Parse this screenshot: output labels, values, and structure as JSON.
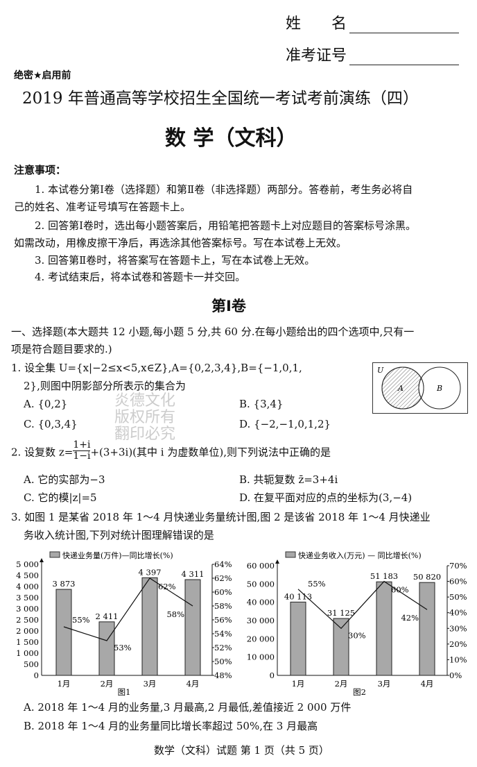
{
  "header": {
    "name_label": "姓　　名",
    "id_label": "准考证号",
    "secret": "绝密★启用前",
    "title": "2019 年普通高等学校招生全国统一考试考前演练（四）",
    "subject": "数 学（文科）"
  },
  "notice": {
    "heading": "注意事项：",
    "items": [
      "1. 本试卷分第Ⅰ卷（选择题）和第Ⅱ卷（非选择题）两部分。答卷前，考生务必将自",
      "己的姓名、准考证号填写在答题卡上。",
      "2. 回答第Ⅰ卷时，选出每小题答案后，用铅笔把答题卡上对应题目的答案标号涂黑。",
      "如需改动，用橡皮擦干净后，再选涂其他答案标号。写在本试卷上无效。",
      "3. 回答第Ⅱ卷时，将答案写在答题卡上，写在本试卷上无效。",
      "4. 考试结束后，将本试卷和答题卡一并交回。"
    ]
  },
  "section": "第Ⅰ卷",
  "part1": [
    "一、选择题(本大题共 12 小题,每小题 5 分,共 60 分.在每小题给出的四个选项中,只有一",
    "项是符合题目要求的.)"
  ],
  "q1": {
    "stem": [
      "1. 设全集 U={x|−2≤x<5,x∈Z},A={0,2,3,4},B={−1,0,1,",
      "2},则图中阴影部分所表示的集合为"
    ],
    "A": "A. {0,2}",
    "B": "B. {3,4}",
    "C": "C. {0,3,4}",
    "D": "D. {−2,−1,0,1,2}",
    "venn": {
      "U": "U",
      "A": "A",
      "B": "B"
    }
  },
  "watermark": [
    "炎德文化",
    "版权所有",
    "翻印必究"
  ],
  "q2": {
    "stem_pre": "2. 设复数 z=",
    "num": "1+i",
    "den": "1−i",
    "stem_post": "+(3+3i)(其中 i 为虚数单位),则下列说法中正确的是",
    "A": "A. 它的实部为−3",
    "B": "B. 共轭复数 z̄=3+4i",
    "C": "C. 它的模|z|=5",
    "D": "D. 在复平面对应的点的坐标为(3,−4)"
  },
  "q3": {
    "stem": [
      "3. 如图 1 是某省 2018 年 1～4 月快递业务量统计图,图 2 是该省 2018 年 1～4 月快递业",
      "务收入统计图,下列对统计图理解错误的是"
    ],
    "A": "A. 2018 年 1～4 月的业务量,3 月最高,2 月最低,差值接近 2 000 万件",
    "B": "B. 2018 年 1～4 月的业务量同比增长率超过 50%,在 3 月最高"
  },
  "footer": "数学（文科）试题 第 1 页（共 5 页）",
  "chart_data": [
    {
      "type": "bar+line",
      "title": "图1",
      "legend": "快递业务量(万件)—同比增长(%)",
      "categories": [
        "1月",
        "2月",
        "3月",
        "4月"
      ],
      "bar_series": {
        "name": "快递业务量(万件)",
        "values": [
          3873,
          2411,
          4397,
          4311
        ],
        "labels": [
          "3 873",
          "2 411",
          "4 397",
          "4 311"
        ]
      },
      "line_series": {
        "name": "同比增长(%)",
        "values": [
          55,
          53,
          62,
          58
        ],
        "labels": [
          "55%",
          "53%",
          "62%",
          "58%"
        ]
      },
      "ylim": [
        0,
        5000
      ],
      "yticks": [
        "0",
        "500",
        "1 000",
        "1 500",
        "2 000",
        "2 500",
        "3 000",
        "3 500",
        "4 000",
        "4 500",
        "5 000"
      ],
      "y2lim": [
        48,
        64
      ],
      "y2ticks": [
        "48%",
        "50%",
        "52%",
        "54%",
        "56%",
        "58%",
        "60%",
        "62%",
        "64%"
      ],
      "bar_color": "#a8a8a8"
    },
    {
      "type": "bar+line",
      "title": "图2",
      "legend": "快递业务收入(万元) — 同比增长(%)",
      "categories": [
        "1月",
        "2月",
        "3月",
        "4月"
      ],
      "bar_series": {
        "name": "快递业务收入(万元)",
        "values": [
          40113,
          31125,
          51183,
          50820
        ],
        "labels": [
          "40 113",
          "31 125",
          "51 183",
          "50 820"
        ]
      },
      "line_series": {
        "name": "同比增长(%)",
        "values": [
          55,
          30,
          60,
          42
        ],
        "labels": [
          "55%",
          "30%",
          "60%",
          "42%"
        ]
      },
      "ylim": [
        0,
        60000
      ],
      "yticks": [
        "0",
        "10 000",
        "20 000",
        "30 000",
        "40 000",
        "50 000",
        "60 000"
      ],
      "y2lim": [
        0,
        70
      ],
      "y2ticks": [
        "0%",
        "10%",
        "20%",
        "30%",
        "40%",
        "50%",
        "60%",
        "70%"
      ],
      "bar_color": "#a8a8a8"
    }
  ]
}
